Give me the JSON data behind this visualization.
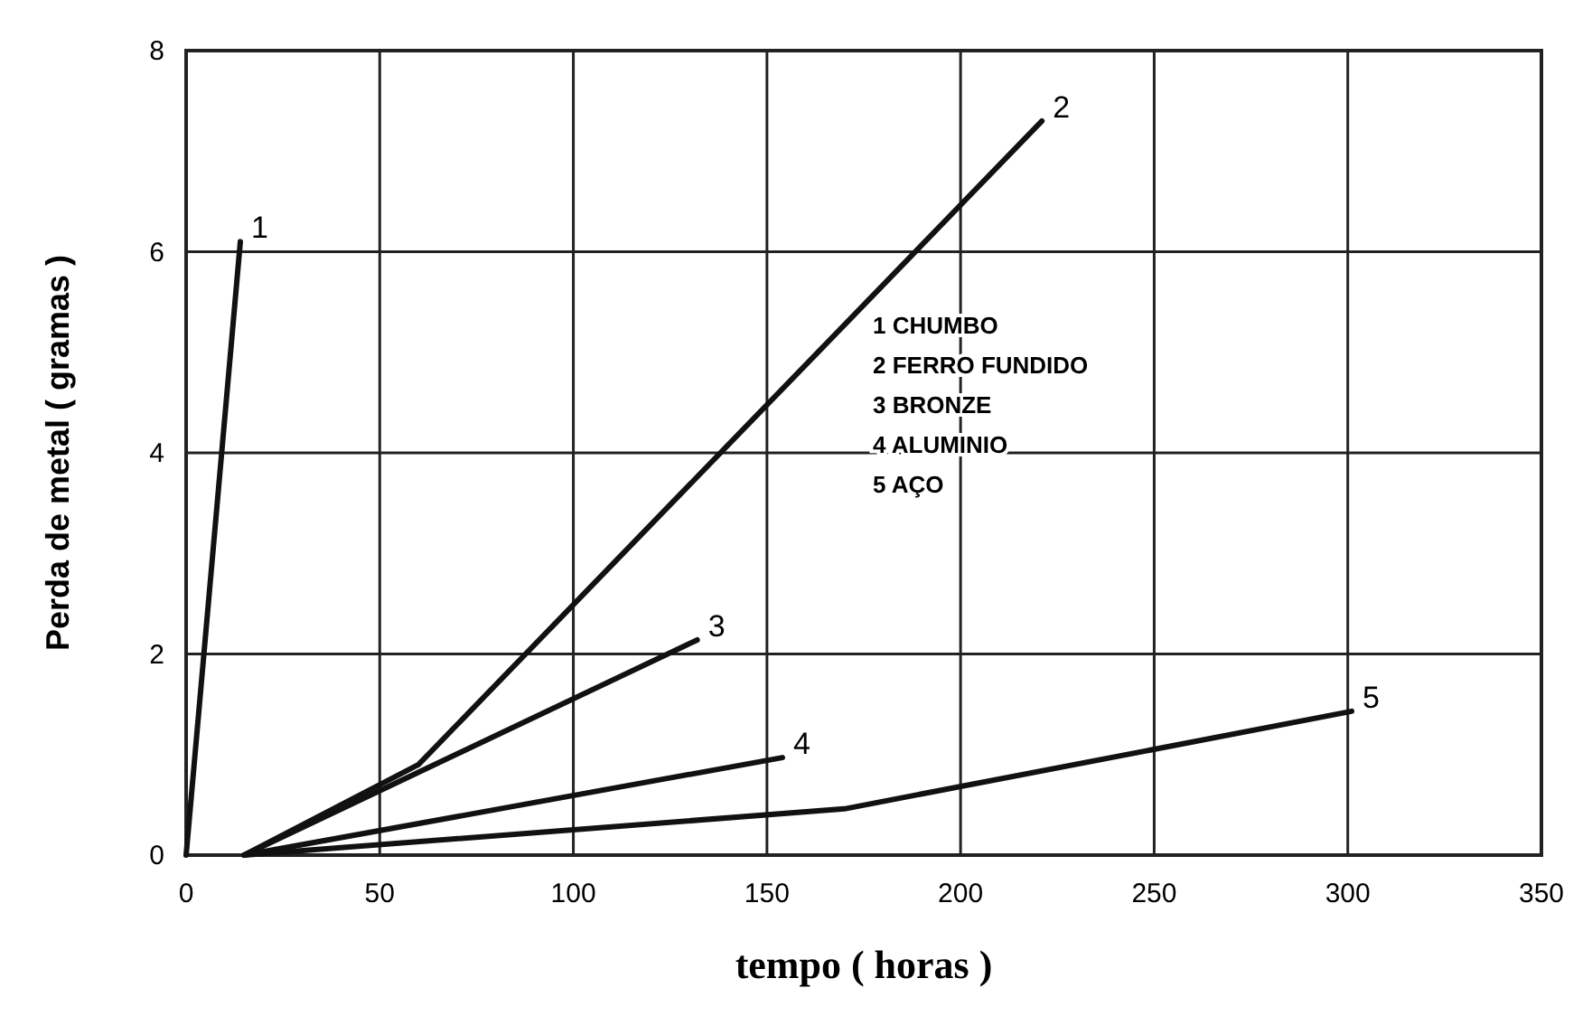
{
  "chart_data": {
    "type": "line",
    "xlabel": "tempo ( horas )",
    "ylabel": "Perda de metal ( gramas )",
    "xlim": [
      0,
      350
    ],
    "xticks": [
      0,
      50,
      100,
      150,
      200,
      250,
      300,
      350
    ],
    "ylim": [
      0,
      8
    ],
    "yticks": [
      0,
      2,
      4,
      6,
      8
    ],
    "grid": true,
    "marker": "none",
    "line_style": "solid",
    "series": [
      {
        "name": "1",
        "color": "#111111",
        "x": [
          0,
          14
        ],
        "values": [
          0,
          6.1
        ]
      },
      {
        "name": "2",
        "color": "#111111",
        "x": [
          15,
          60,
          221
        ],
        "values": [
          0,
          0.9,
          7.3
        ]
      },
      {
        "name": "3",
        "color": "#111111",
        "x": [
          15,
          132
        ],
        "values": [
          0,
          2.14
        ]
      },
      {
        "name": "4",
        "color": "#111111",
        "x": [
          15,
          154
        ],
        "values": [
          0,
          0.97
        ]
      },
      {
        "name": "5",
        "color": "#111111",
        "x": [
          15,
          170,
          301
        ],
        "values": [
          0,
          0.46,
          1.43
        ]
      }
    ],
    "annotations": [
      "1 CHUMBO",
      "2 FERRO FUNDIDO",
      "3 BRONZE",
      "4 ALUMINIO",
      "5 AÇO"
    ]
  }
}
